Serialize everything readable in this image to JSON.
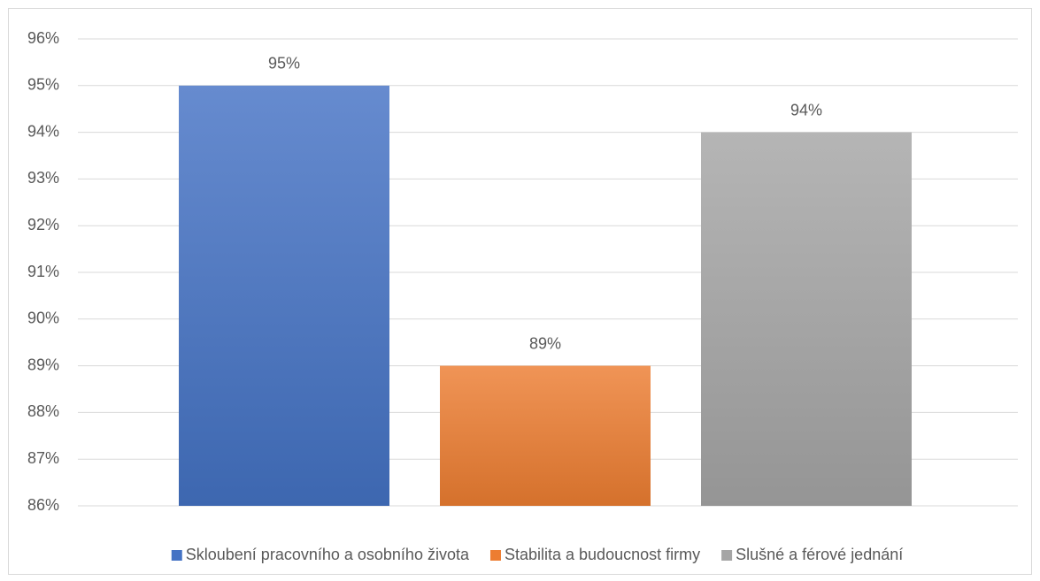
{
  "chart_data": {
    "type": "bar",
    "categories": [
      null
    ],
    "series": [
      {
        "name": "Skloubení pracovního a osobního života",
        "color": "#4472c4",
        "values": [
          95
        ],
        "value_labels": [
          "95%"
        ]
      },
      {
        "name": "Stabilita a budoucnost firmy",
        "color": "#ed7d31",
        "values": [
          89
        ],
        "value_labels": [
          "89%"
        ]
      },
      {
        "name": "Slušné a férové jednání",
        "color": "#a5a5a5",
        "values": [
          94
        ],
        "value_labels": [
          "94%"
        ]
      }
    ],
    "ylim": [
      86,
      96
    ],
    "yticks": [
      {
        "value": 86,
        "label": "86%"
      },
      {
        "value": 87,
        "label": "87%"
      },
      {
        "value": 88,
        "label": "88%"
      },
      {
        "value": 89,
        "label": "89%"
      },
      {
        "value": 90,
        "label": "90%"
      },
      {
        "value": 91,
        "label": "91%"
      },
      {
        "value": 92,
        "label": "92%"
      },
      {
        "value": 93,
        "label": "93%"
      },
      {
        "value": 94,
        "label": "94%"
      },
      {
        "value": 95,
        "label": "95%"
      },
      {
        "value": 96,
        "label": "96%"
      }
    ],
    "grid": true,
    "legend": "bottom"
  }
}
